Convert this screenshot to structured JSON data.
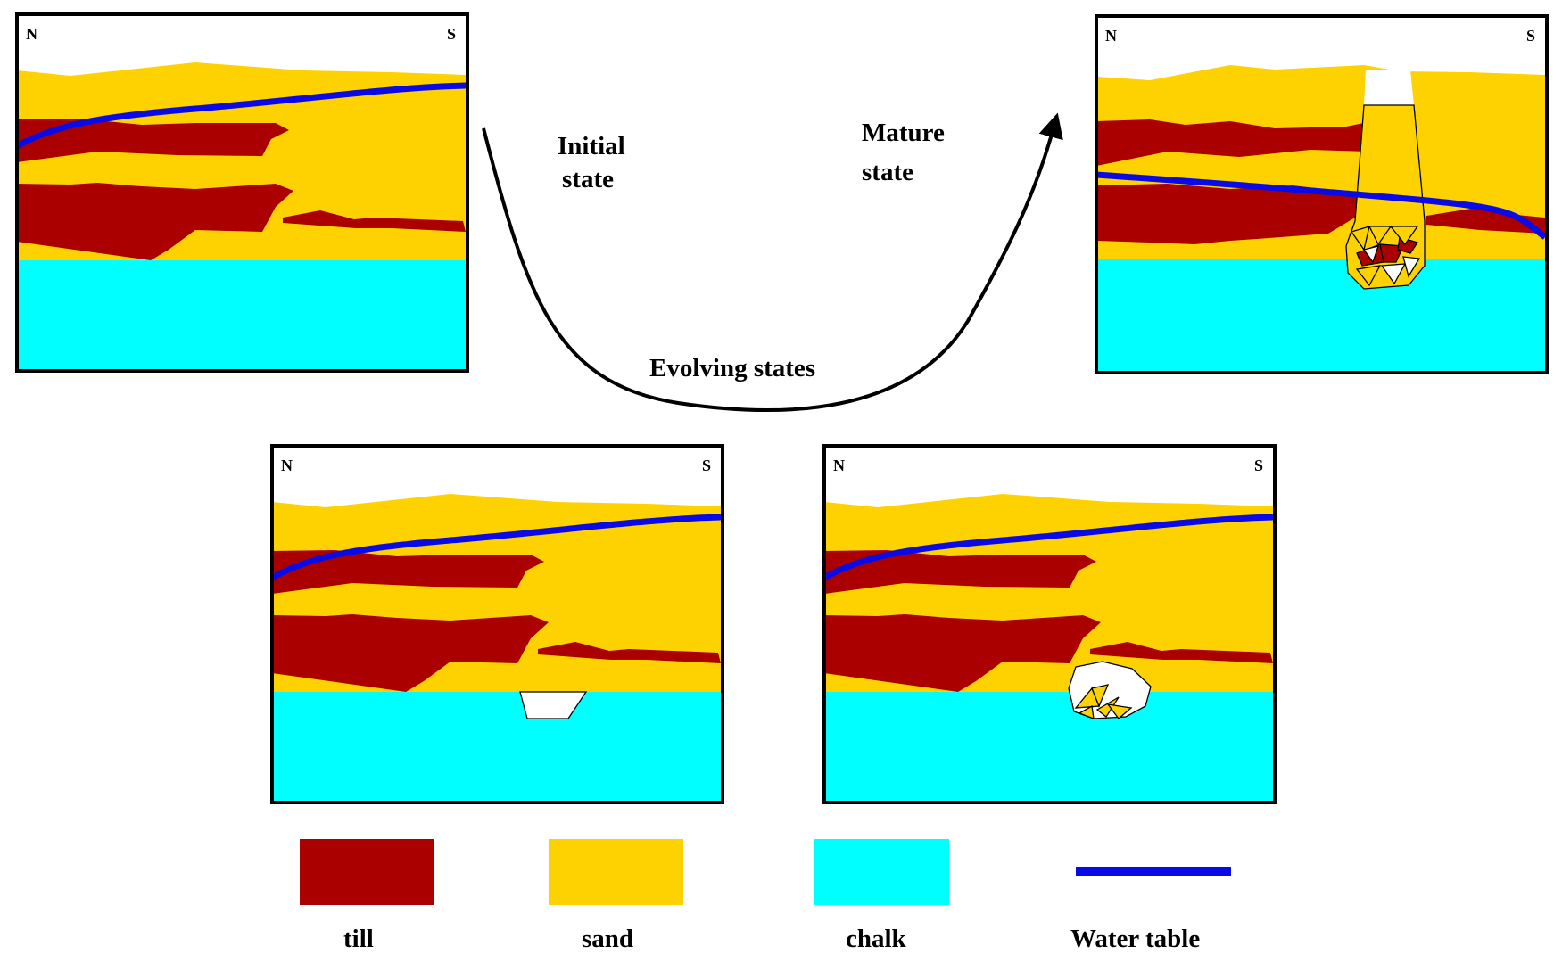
{
  "colors": {
    "till": "#AA0000",
    "sand": "#FDD200",
    "chalk": "#00FFFF",
    "water_table": "#0A0AE6",
    "void": "#FFFFFF",
    "border": "#000000"
  },
  "panels": [
    {
      "id": "initial",
      "north_label": "N",
      "south_label": "S",
      "feature": "none"
    },
    {
      "id": "evolving-1",
      "north_label": "N",
      "south_label": "S",
      "feature": "small-void"
    },
    {
      "id": "evolving-2",
      "north_label": "N",
      "south_label": "S",
      "feature": "void-with-debris"
    },
    {
      "id": "mature",
      "north_label": "N",
      "south_label": "S",
      "feature": "pipe-through-sand"
    }
  ],
  "stage_labels": {
    "initial_line1": "Initial",
    "initial_line2": "state",
    "mature_line1": "Mature",
    "mature_line2": "state",
    "evolving": "Evolving states"
  },
  "legend": {
    "till": "till",
    "sand": "sand",
    "chalk": "chalk",
    "water_table": "Water table"
  }
}
